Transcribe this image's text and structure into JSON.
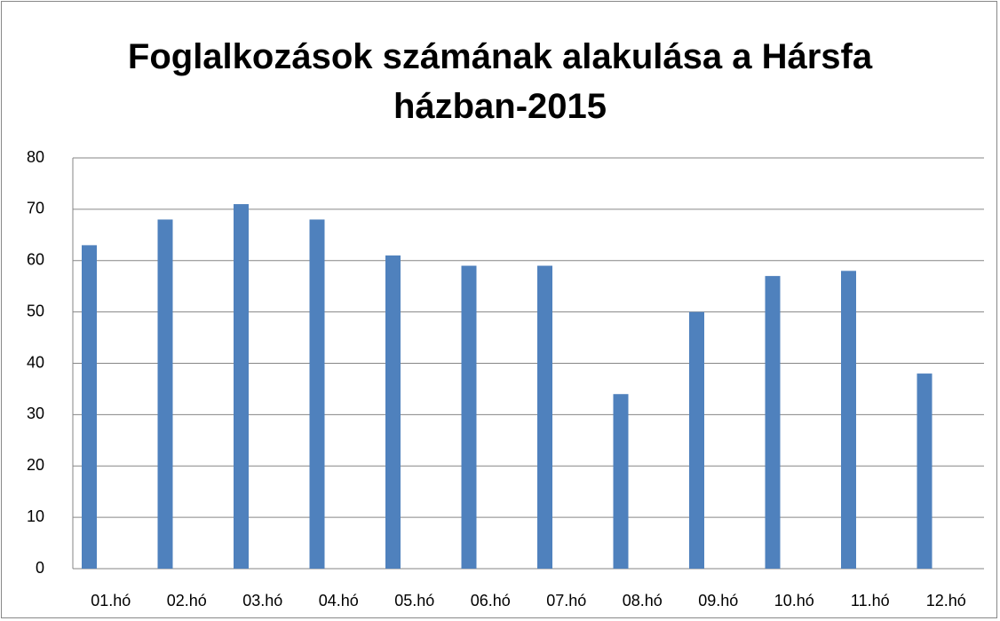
{
  "chart_data": {
    "type": "bar",
    "title": "Foglalkozások számának alakulása a Hársfa házban-2015",
    "categories": [
      "01.hó",
      "02.hó",
      "03.hó",
      "04.hó",
      "05.hó",
      "06.hó",
      "07.hó",
      "08.hó",
      "09.hó",
      "10.hó",
      "11.hó",
      "12.hó"
    ],
    "values": [
      63,
      68,
      71,
      68,
      61,
      59,
      59,
      34,
      50,
      57,
      58,
      38
    ],
    "color": "#4f81bd",
    "ylim": [
      0,
      80
    ],
    "yticks": [
      0,
      10,
      20,
      30,
      40,
      50,
      60,
      70,
      80
    ],
    "grid": true
  }
}
